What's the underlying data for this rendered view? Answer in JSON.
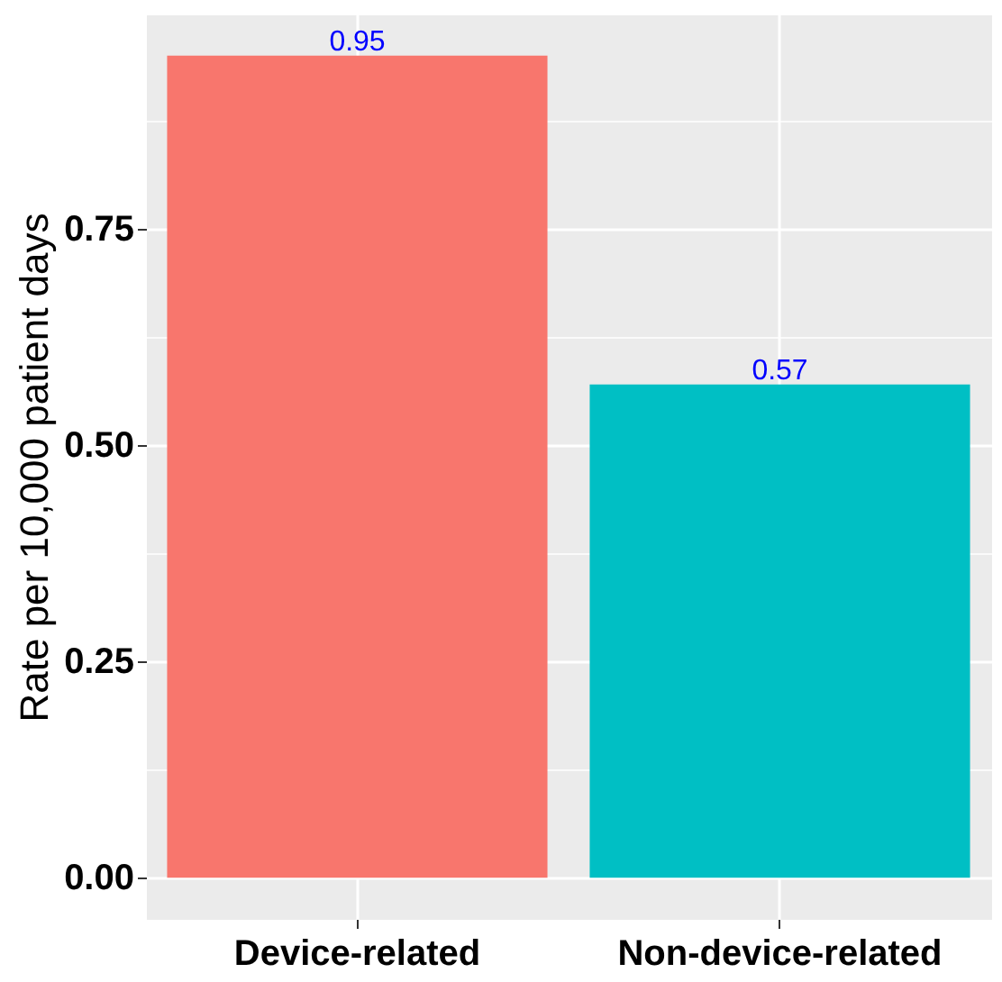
{
  "chart_data": {
    "type": "bar",
    "ylabel": "Rate per 10,000 patient days",
    "categories": [
      "Device-related",
      "Non-device-related"
    ],
    "values": [
      0.95,
      0.57
    ],
    "colors": [
      "#f8766d",
      "#00bfc4"
    ],
    "data_labels": true,
    "ylim": [
      -0.0475,
      0.9975
    ],
    "yticks": [
      {
        "value": 0,
        "label": "0.00"
      },
      {
        "value": 0.125,
        "label": null
      },
      {
        "value": 0.25,
        "label": "0.25"
      },
      {
        "value": 0.375,
        "label": null
      },
      {
        "value": 0.5,
        "label": "0.50"
      },
      {
        "value": 0.625,
        "label": null
      },
      {
        "value": 0.75,
        "label": "0.75"
      },
      {
        "value": 0.875,
        "label": null
      }
    ],
    "grid": true
  }
}
